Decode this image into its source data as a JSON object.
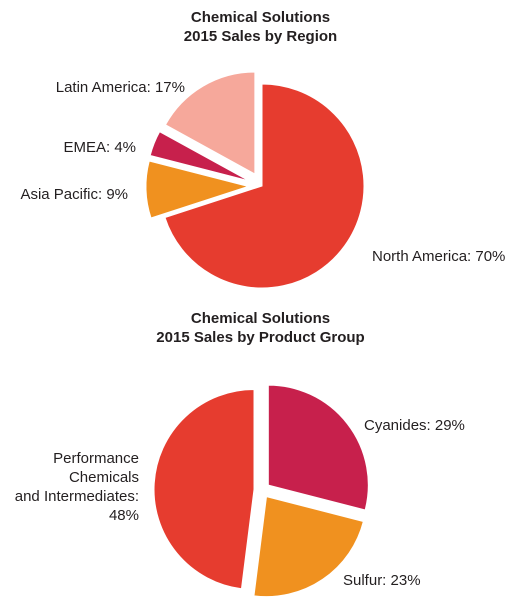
{
  "chart_data": [
    {
      "type": "pie",
      "title": "Chemical Solutions",
      "subtitle": "2015 Sales by Region",
      "slices": [
        {
          "label": "North America: 70%",
          "value": 70,
          "color": "#e63c2f"
        },
        {
          "label": "Asia Pacific: 9%",
          "value": 9,
          "color": "#f0911f"
        },
        {
          "label": "EMEA: 4%",
          "value": 4,
          "color": "#c7204c"
        },
        {
          "label": "Latin America: 17%",
          "value": 17,
          "color": "#f6a89b"
        }
      ]
    },
    {
      "type": "pie",
      "title": "Chemical Solutions",
      "subtitle": "2015 Sales by Product Group",
      "slices": [
        {
          "label": "Cyanides: 29%",
          "value": 29,
          "color": "#c7204c"
        },
        {
          "label": "Sulfur: 23%",
          "value": 23,
          "color": "#f0911f"
        },
        {
          "label": "Performance|Chemicals|and Intermediates:|48%",
          "value": 48,
          "color": "#e63c2f"
        }
      ]
    }
  ]
}
